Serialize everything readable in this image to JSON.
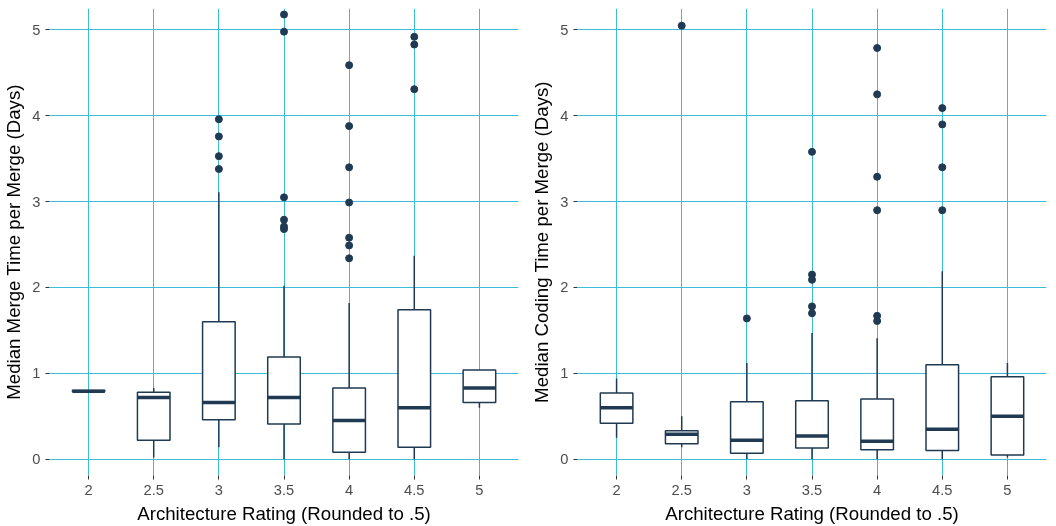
{
  "chart_data": [
    {
      "type": "box",
      "xlabel": "Architecture Rating (Rounded to .5)",
      "ylabel": "Median Merge Time per Merge (Days)",
      "categories": [
        "2",
        "2.5",
        "3",
        "3.5",
        "4",
        "4.5",
        "5"
      ],
      "ylim": [
        -0.19,
        5.25
      ],
      "yticks": [
        0,
        1,
        2,
        3,
        4,
        5
      ],
      "grid": true,
      "color": "#1f3a52",
      "boxes": [
        {
          "low": 0.78,
          "q1": 0.79,
          "median": 0.79,
          "q3": 0.8,
          "high": 0.8
        },
        {
          "low": 0.02,
          "q1": 0.22,
          "median": 0.72,
          "q3": 0.78,
          "high": 0.83
        },
        {
          "low": 0.14,
          "q1": 0.46,
          "median": 0.66,
          "q3": 1.6,
          "high": 3.11,
          "outliers": [
            3.96,
            3.76,
            3.53,
            3.38
          ]
        },
        {
          "low": 0,
          "q1": 0.41,
          "median": 0.72,
          "q3": 1.19,
          "high": 2.02,
          "outliers": [
            5.18,
            4.98,
            3.05,
            2.79,
            2.71,
            2.68
          ]
        },
        {
          "low": 0,
          "q1": 0.08,
          "median": 0.45,
          "q3": 0.83,
          "high": 1.82,
          "outliers": [
            4.59,
            3.88,
            3.4,
            2.99,
            2.58,
            2.49,
            2.34
          ]
        },
        {
          "low": 0,
          "q1": 0.14,
          "median": 0.6,
          "q3": 1.74,
          "high": 2.37,
          "outliers": [
            4.92,
            4.83,
            4.31
          ]
        },
        {
          "low": 0.6,
          "q1": 0.66,
          "median": 0.83,
          "q3": 1.04,
          "high": 1.04
        }
      ]
    },
    {
      "type": "box",
      "xlabel": "Architecture Rating (Rounded to .5)",
      "ylabel": "Median Coding Time per Merge (Days)",
      "categories": [
        "2",
        "2.5",
        "3",
        "3.5",
        "4",
        "4.5",
        "5"
      ],
      "ylim": [
        -0.19,
        5.25
      ],
      "yticks": [
        0,
        1,
        2,
        3,
        4,
        5
      ],
      "grid": true,
      "color": "#1f3a52",
      "boxes": [
        {
          "low": 0.25,
          "q1": 0.42,
          "median": 0.6,
          "q3": 0.77,
          "high": 0.94
        },
        {
          "low": 0.14,
          "q1": 0.18,
          "median": 0.29,
          "q3": 0.33,
          "high": 0.5,
          "outliers": [
            5.05
          ]
        },
        {
          "low": 0,
          "q1": 0.07,
          "median": 0.22,
          "q3": 0.67,
          "high": 1.12,
          "outliers": [
            1.64
          ]
        },
        {
          "low": 0,
          "q1": 0.13,
          "median": 0.27,
          "q3": 0.68,
          "high": 1.47,
          "outliers": [
            3.58,
            2.15,
            2.09,
            1.78,
            1.7
          ]
        },
        {
          "low": 0,
          "q1": 0.11,
          "median": 0.21,
          "q3": 0.7,
          "high": 1.41,
          "outliers": [
            4.79,
            4.25,
            3.29,
            2.9,
            1.67,
            1.61
          ]
        },
        {
          "low": 0,
          "q1": 0.1,
          "median": 0.35,
          "q3": 1.1,
          "high": 2.19,
          "outliers": [
            4.09,
            3.9,
            3.4,
            2.9
          ]
        },
        {
          "low": 0.02,
          "q1": 0.05,
          "median": 0.5,
          "q3": 0.96,
          "high": 1.12
        }
      ]
    }
  ]
}
